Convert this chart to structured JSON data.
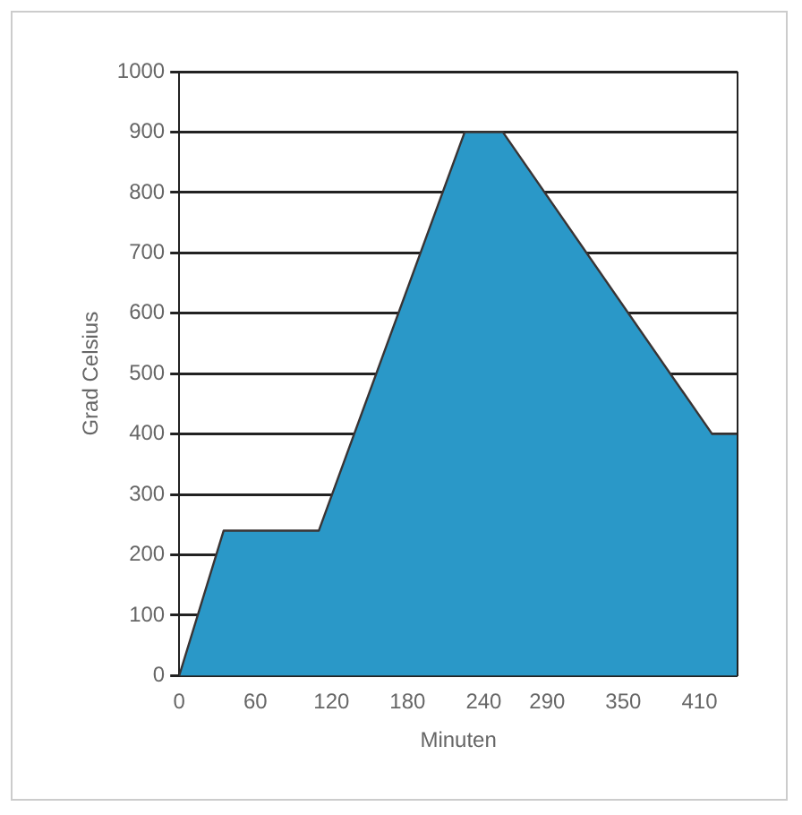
{
  "chart_data": {
    "type": "area",
    "xlabel": "Minuten",
    "ylabel": "Grad Celsius",
    "x": [
      0,
      35,
      110,
      225,
      255,
      420,
      440
    ],
    "series": [
      {
        "color": "#2a98c8",
        "values": [
          0,
          240,
          240,
          900,
          900,
          400,
          400
        ]
      }
    ],
    "xlim": [
      0,
      440
    ],
    "xticks": [
      0,
      60,
      120,
      180,
      240,
      290,
      350,
      410
    ],
    "ylim": [
      0,
      1000
    ],
    "yticks": [
      0,
      100,
      200,
      300,
      400,
      500,
      600,
      700,
      800,
      900,
      1000
    ],
    "grid": "y",
    "legend": false
  }
}
